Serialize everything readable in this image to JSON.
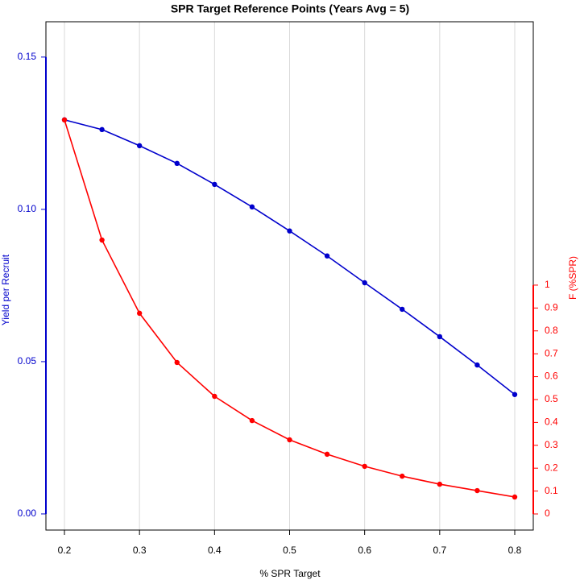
{
  "chart_data": {
    "type": "line",
    "title": "SPR Target Reference Points (Years Avg = 5)",
    "x_label": "% SPR Target",
    "y_label": "Yield per Recruit",
    "y2_label": "F (%SPR)",
    "x": [
      0.2,
      0.25,
      0.3,
      0.35,
      0.4,
      0.45,
      0.5,
      0.55,
      0.6,
      0.65,
      0.7,
      0.75,
      0.8
    ],
    "series": [
      {
        "name": "Yield per Recruit",
        "color": "#0000cc",
        "values": [
          0.1294,
          0.1262,
          0.1209,
          0.1151,
          0.1082,
          0.1008,
          0.0929,
          0.0847,
          0.0759,
          0.0672,
          0.0582,
          0.0489,
          0.0392
        ]
      },
      {
        "name": "F (%SPR)",
        "color": "#ff0000",
        "axis": "y2",
        "values": [
          1.722,
          1.197,
          0.877,
          0.662,
          0.514,
          0.408,
          0.324,
          0.261,
          0.208,
          0.165,
          0.13,
          0.102,
          0.074
        ]
      }
    ],
    "xlim": [
      0.1753,
      0.8247
    ],
    "xticks": [
      0.2,
      0.3,
      0.4,
      0.5,
      0.6,
      0.7,
      0.8
    ],
    "ylim": [
      -0.0053,
      0.1616
    ],
    "yticks": [
      {
        "value": 0,
        "label": "0.00"
      },
      {
        "value": 0.05,
        "label": "0.05"
      },
      {
        "value": 0.1,
        "label": "0.10"
      },
      {
        "value": 0.15,
        "label": "0.15"
      }
    ],
    "y2lim": [
      -0.0704,
      2.151
    ],
    "y2ticks": [
      0,
      0.1,
      0.2,
      0.3,
      0.4,
      0.5,
      0.6,
      0.7,
      0.8,
      0.9,
      1
    ],
    "grid": true
  }
}
